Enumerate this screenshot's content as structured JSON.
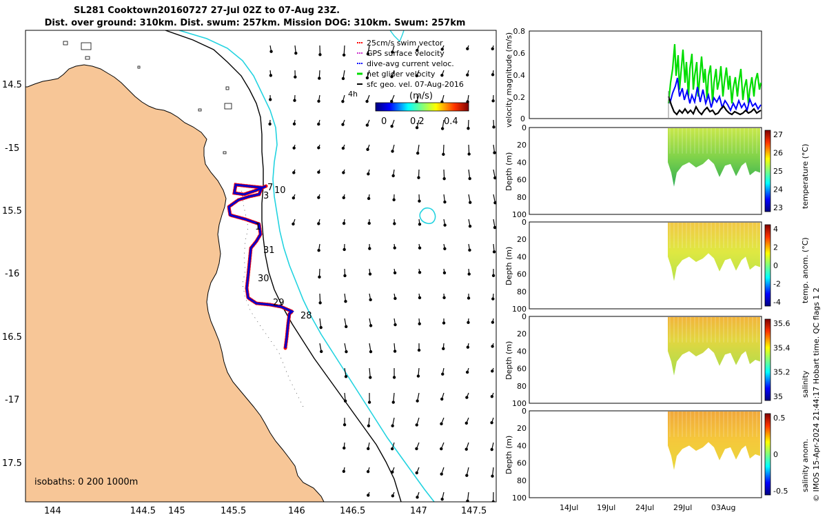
{
  "header": {
    "title_line1": "SL281 Cooktown20160727 27-Jul 02Z to 07-Aug 23Z.",
    "title_line2": "Dist. over ground: 310km. Dist. swum: 257km. Mission DOG: 310km. Swum: 257km"
  },
  "map": {
    "lon_ticks": [
      "144",
      "144.5",
      "145",
      "145.5",
      "146",
      "146.5",
      "147",
      "147.5"
    ],
    "lat_ticks": [
      "14.5",
      "-15",
      "15.5",
      "-16",
      "16.5",
      "-17",
      "17.5"
    ],
    "legend": [
      {
        "label": "25cm/s swim vector",
        "color": "#ff0000"
      },
      {
        "label": "GPS surface velocity",
        "color": "#cc33cc"
      },
      {
        "label": "dive-avg current veloc.",
        "color": "#0000ff"
      },
      {
        "label": "net glider velocity",
        "color": "#00dd00"
      },
      {
        "label": "sfc geo. vel. 07-Aug-2016",
        "color": "#000000"
      }
    ],
    "legend_time_tag": "4h",
    "colorbar": {
      "label": "(m/s)",
      "ticks": [
        "0",
        "0.2",
        "0.4"
      ]
    },
    "isobaths_note": "isobaths: 0   200  1000m",
    "track_day_labels": [
      "7",
      "10",
      "3",
      "1",
      "31",
      "30",
      "29",
      "28"
    ],
    "colors": {
      "land": "#f7c697",
      "coast": "#000000",
      "isobath_200": "#000000",
      "isobath_1000": "#22d3e0",
      "track": "#0000cc",
      "swim": "#ff0000"
    }
  },
  "panels": {
    "velocity": {
      "ylabel": "velocity magnitude (m/s)",
      "yticks": [
        "0",
        "0.2",
        "0.4",
        "0.6",
        "0.8"
      ]
    },
    "temperature": {
      "ylabel": "Depth (m)",
      "cbar_label": "temperature (°C)",
      "yticks": [
        "0",
        "20",
        "40",
        "60",
        "80",
        "100"
      ],
      "cbar_ticks": [
        "27",
        "26",
        "25",
        "24",
        "23"
      ]
    },
    "temp_anom": {
      "ylabel": "Depth (m)",
      "cbar_label": "temp. anom. (°C)",
      "yticks": [
        "0",
        "20",
        "40",
        "60",
        "80",
        "100"
      ],
      "cbar_ticks": [
        "4",
        "2",
        "0",
        "-2",
        "-4"
      ]
    },
    "salinity": {
      "ylabel": "Depth (m)",
      "cbar_label": "salinity",
      "yticks": [
        "0",
        "20",
        "40",
        "60",
        "80",
        "100"
      ],
      "cbar_ticks": [
        "35.6",
        "35.4",
        "35.2",
        "35"
      ]
    },
    "sal_anom": {
      "ylabel": "Depth (m)",
      "cbar_label": "salinity anom.",
      "yticks": [
        "0",
        "20",
        "40",
        "60",
        "80",
        "100"
      ],
      "cbar_ticks": [
        "0.5",
        "0",
        "-0.5"
      ]
    },
    "xticks": [
      "14Jul",
      "19Jul",
      "24Jul",
      "29Jul",
      "03Aug"
    ]
  },
  "footer": {
    "side_note": "© IMOS 15-Apr-2024 21:44:17 Hobart time. QC flags 1  2"
  }
}
